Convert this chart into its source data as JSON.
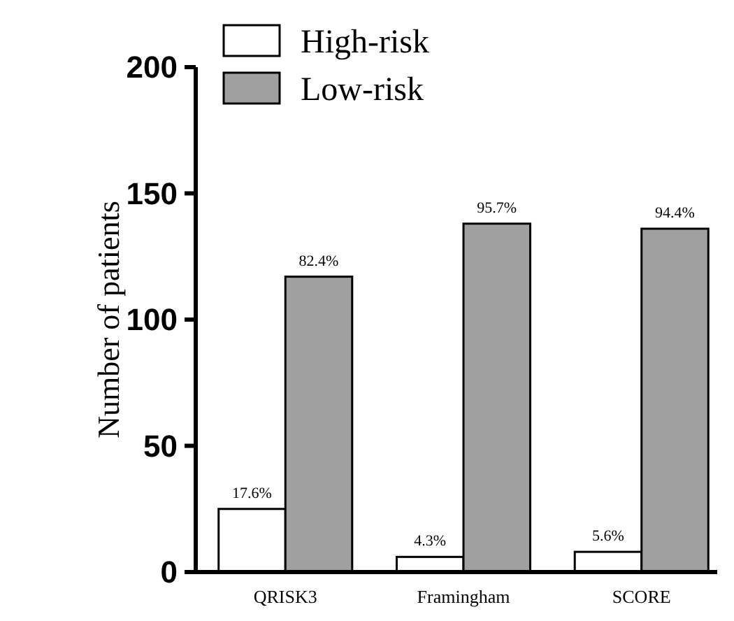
{
  "chart_data": {
    "type": "bar",
    "ylabel": "Number of patients",
    "categories": [
      "QRISK3",
      "Framingham",
      "SCORE"
    ],
    "series": [
      {
        "name": "High-risk",
        "color": "#ffffff",
        "values": [
          25,
          6,
          8
        ]
      },
      {
        "name": "Low-risk",
        "color": "#a0a0a0",
        "values": [
          117,
          138,
          136
        ]
      }
    ],
    "annotations": [
      {
        "text": "17.6%",
        "x": "QRISK3",
        "y": 25
      },
      {
        "text": "4.3%",
        "x": "Framingham",
        "y": 6
      },
      {
        "text": "5.6%",
        "x": "SCORE",
        "y": 8
      },
      {
        "text": "82.4%",
        "x": "QRISK3",
        "y": 117
      },
      {
        "text": "95.7%",
        "x": "Framingham",
        "y": 138
      },
      {
        "text": "94.4%",
        "x": "SCORE",
        "y": 136
      }
    ],
    "ylim": [
      0,
      200
    ],
    "yticks": [
      0,
      50,
      100,
      150,
      200
    ],
    "legend": "top left"
  }
}
